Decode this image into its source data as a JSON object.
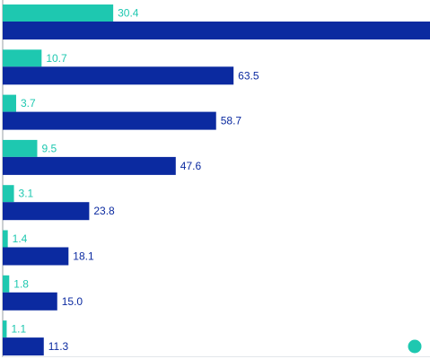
{
  "chart_data": {
    "type": "bar",
    "orientation": "horizontal",
    "categories": [
      "",
      "",
      "",
      "",
      "",
      "",
      "",
      ""
    ],
    "series": [
      {
        "color": "#1ec8b0",
        "values": [
          30.4,
          10.7,
          3.7,
          9.5,
          3.1,
          1.4,
          1.8,
          1.1
        ]
      },
      {
        "color": "#0b2aa0",
        "values": [
          null,
          63.5,
          58.7,
          47.6,
          23.8,
          18.1,
          15.0,
          11.3
        ]
      }
    ],
    "series_visible_max": [
      null,
      118
    ],
    "title": "",
    "xlabel": "",
    "ylabel": "",
    "xlim": [
      0,
      118
    ],
    "grid": false,
    "legend": {
      "placement": "bottom-right",
      "marker_color": "#1ec8b0"
    }
  }
}
